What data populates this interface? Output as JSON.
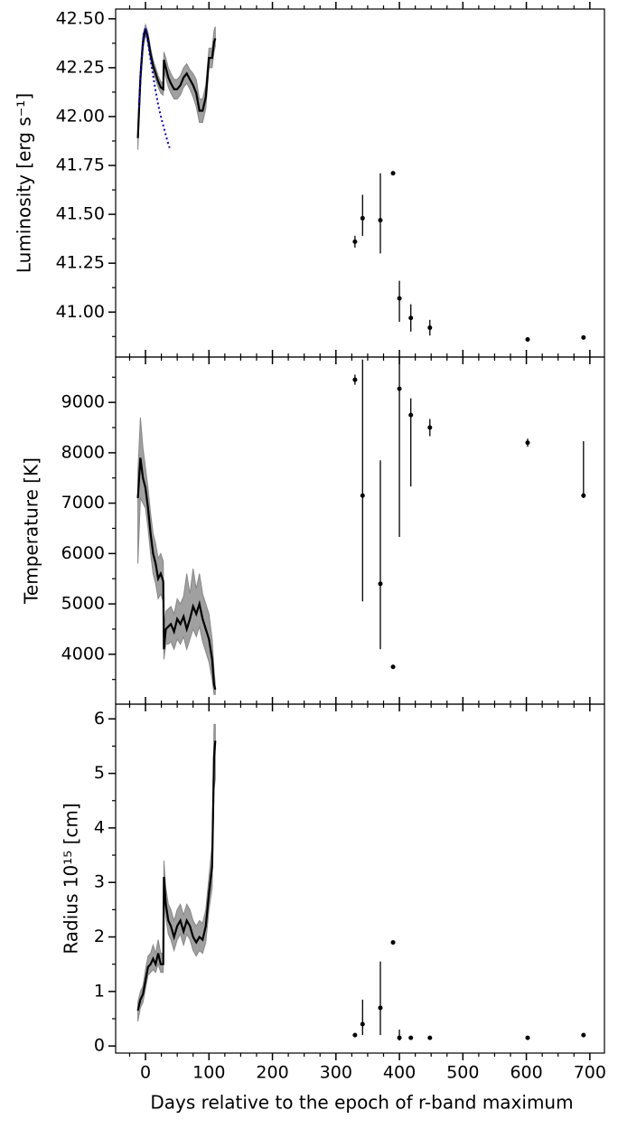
{
  "chart_data": [
    {
      "type": "line",
      "ylabel": "Luminosity [erg s⁻¹]",
      "ylim": [
        40.77,
        42.55
      ],
      "yticks": [
        {
          "value": 41,
          "label": "41.00"
        },
        41.25,
        {
          "value": 41.5,
          "label": "41.50"
        },
        41.75,
        {
          "value": 42,
          "label": "42.00"
        },
        42.25,
        {
          "value": 42.5,
          "label": "42.50"
        }
      ],
      "yminor": [
        40.875,
        41.125,
        41.375,
        41.625,
        41.875,
        42.125,
        42.375
      ],
      "series": [
        {
          "color": "#000000",
          "band_color": "#a0a0a0",
          "x": [
            -12,
            -8,
            -4,
            0,
            4,
            8,
            12,
            16,
            20,
            24,
            28,
            29,
            32,
            36,
            40,
            45,
            50,
            55,
            60,
            65,
            70,
            75,
            80,
            85,
            90,
            95,
            100,
            105,
            108,
            110
          ],
          "values": [
            41.89,
            42.2,
            42.38,
            42.45,
            42.4,
            42.32,
            42.26,
            42.22,
            42.18,
            42.15,
            42.14,
            42.29,
            42.25,
            42.2,
            42.17,
            42.14,
            42.14,
            42.16,
            42.2,
            42.22,
            42.19,
            42.16,
            42.12,
            42.03,
            42.03,
            42.1,
            42.3,
            42.3,
            42.38,
            42.4
          ],
          "band_lower": [
            41.83,
            42.15,
            42.34,
            42.42,
            42.37,
            42.29,
            42.23,
            42.19,
            42.15,
            42.12,
            42.11,
            42.24,
            42.2,
            42.15,
            42.12,
            42.09,
            42.09,
            42.11,
            42.15,
            42.17,
            42.14,
            42.1,
            42.05,
            41.97,
            41.97,
            42.04,
            42.25,
            42.25,
            42.33,
            42.36
          ],
          "band_upper": [
            41.95,
            42.25,
            42.42,
            42.47,
            42.43,
            42.35,
            42.29,
            42.25,
            42.21,
            42.18,
            42.17,
            42.33,
            42.3,
            42.25,
            42.22,
            42.19,
            42.19,
            42.21,
            42.25,
            42.27,
            42.24,
            42.22,
            42.19,
            42.09,
            42.09,
            42.16,
            42.35,
            42.35,
            42.44,
            42.46
          ]
        },
        {
          "color": "#0000cc",
          "linestyle": "dotted",
          "x": [
            -10,
            -6,
            -3,
            0,
            3,
            6,
            10,
            15,
            20,
            25,
            30,
            35,
            38
          ],
          "values": [
            42.05,
            42.3,
            42.42,
            42.45,
            42.4,
            42.33,
            42.25,
            42.15,
            42.06,
            41.99,
            41.93,
            41.87,
            41.84
          ]
        }
      ],
      "points": {
        "color": "#000000",
        "x": [
          330,
          342,
          370,
          390,
          400,
          418,
          448,
          602,
          690
        ],
        "values": [
          41.36,
          41.48,
          41.47,
          41.71,
          41.07,
          40.97,
          40.92,
          40.86,
          40.87
        ],
        "err_minus": [
          0.03,
          0.09,
          0.17,
          0.01,
          0.12,
          0.07,
          0.04,
          0.01,
          0.01
        ],
        "err_plus": [
          0.03,
          0.12,
          0.24,
          0.01,
          0.09,
          0.07,
          0.04,
          0.01,
          0.01
        ]
      }
    },
    {
      "type": "line",
      "ylabel": "Temperature [K]",
      "ylim": [
        3010,
        9900
      ],
      "yticks": [
        4000,
        5000,
        6000,
        7000,
        8000,
        9000
      ],
      "yminor": [
        3500,
        4500,
        5500,
        6500,
        7500,
        8500,
        9500
      ],
      "series": [
        {
          "color": "#000000",
          "band_color": "#a0a0a0",
          "x": [
            -12,
            -8,
            -4,
            0,
            4,
            8,
            12,
            16,
            20,
            24,
            28,
            29,
            32,
            36,
            40,
            45,
            50,
            55,
            60,
            65,
            70,
            75,
            80,
            85,
            90,
            95,
            100,
            105,
            108,
            110
          ],
          "values": [
            7100,
            7900,
            7500,
            7300,
            6900,
            6400,
            6000,
            5800,
            5500,
            5600,
            5450,
            4100,
            4500,
            4550,
            4600,
            4450,
            4700,
            4600,
            4750,
            4500,
            4700,
            4950,
            4800,
            5000,
            4700,
            4500,
            4300,
            3900,
            3400,
            3300
          ],
          "band_lower": [
            5800,
            7100,
            7000,
            6900,
            6500,
            6000,
            5600,
            5400,
            5100,
            5200,
            5050,
            3900,
            4200,
            4200,
            4250,
            4100,
            4300,
            4200,
            4350,
            4100,
            4300,
            4500,
            4350,
            4550,
            4250,
            4050,
            3850,
            3500,
            3200,
            3200
          ],
          "band_upper": [
            7600,
            8700,
            8100,
            7700,
            7300,
            6800,
            6400,
            6200,
            5900,
            6000,
            5850,
            4500,
            4850,
            4900,
            4950,
            4800,
            5100,
            5000,
            5150,
            5600,
            5200,
            5700,
            5300,
            5600,
            5200,
            5000,
            4800,
            4300,
            3700,
            3400
          ]
        }
      ],
      "points": {
        "color": "#000000",
        "x": [
          330,
          342,
          370,
          390,
          400,
          418,
          448,
          602,
          690
        ],
        "values": [
          9450,
          7150,
          5400,
          3750,
          9270,
          8750,
          8500,
          8200,
          7150
        ],
        "err_minus": [
          100,
          2100,
          1300,
          20,
          2940,
          1420,
          170,
          80,
          50
        ],
        "err_plus": [
          100,
          2700,
          2450,
          20,
          700,
          330,
          170,
          80,
          1080
        ]
      }
    },
    {
      "type": "line",
      "ylabel": "Radius 10¹⁵ [cm]",
      "xlabel": "Days relative to the epoch of r-band maximum",
      "xlim": [
        -47,
        723
      ],
      "xticks": [
        0,
        100,
        200,
        300,
        400,
        500,
        600,
        700
      ],
      "xminor": [
        -25,
        25,
        50,
        75,
        125,
        150,
        175,
        225,
        250,
        275,
        325,
        350,
        375,
        425,
        450,
        475,
        525,
        550,
        575,
        625,
        650,
        675
      ],
      "ylim": [
        -0.13,
        6.27
      ],
      "yticks": [
        0,
        1,
        2,
        3,
        4,
        5,
        6
      ],
      "yminor": [
        0.5,
        1.5,
        2.5,
        3.5,
        4.5,
        5.5
      ],
      "series": [
        {
          "color": "#000000",
          "band_color": "#a0a0a0",
          "x": [
            -12,
            -8,
            -4,
            0,
            4,
            8,
            12,
            16,
            20,
            24,
            28,
            29,
            32,
            36,
            40,
            45,
            50,
            55,
            60,
            65,
            70,
            75,
            80,
            85,
            90,
            95,
            100,
            105,
            108,
            110
          ],
          "values": [
            0.65,
            0.85,
            0.95,
            1.2,
            1.45,
            1.5,
            1.6,
            1.5,
            1.7,
            1.5,
            1.5,
            3.1,
            2.6,
            2.3,
            2.2,
            2.0,
            2.2,
            2.3,
            2.1,
            2.3,
            2.2,
            2.0,
            1.9,
            2.0,
            1.95,
            2.2,
            2.8,
            3.3,
            5.3,
            5.6
          ],
          "band_lower": [
            0.45,
            0.7,
            0.8,
            1.05,
            1.3,
            1.35,
            1.4,
            1.35,
            1.5,
            1.35,
            1.35,
            2.8,
            2.35,
            2.05,
            1.95,
            1.75,
            1.95,
            2.05,
            1.85,
            2.05,
            1.95,
            1.75,
            1.65,
            1.75,
            1.7,
            1.9,
            2.5,
            2.9,
            4.7,
            4.9
          ],
          "band_upper": [
            0.8,
            1.0,
            1.1,
            1.4,
            1.65,
            1.7,
            1.85,
            1.7,
            1.95,
            1.7,
            1.7,
            3.4,
            2.9,
            2.6,
            2.5,
            2.3,
            2.5,
            2.6,
            2.4,
            2.6,
            2.5,
            2.3,
            2.2,
            2.3,
            2.25,
            2.5,
            3.1,
            3.7,
            5.9,
            5.9
          ]
        }
      ],
      "points": {
        "color": "#000000",
        "x": [
          330,
          342,
          370,
          390,
          400,
          418,
          448,
          602,
          690
        ],
        "values": [
          0.2,
          0.4,
          0.7,
          1.9,
          0.15,
          0.15,
          0.15,
          0.15,
          0.2
        ],
        "err_minus": [
          0.02,
          0.2,
          0.5,
          0.02,
          0.05,
          0.03,
          0.02,
          0.02,
          0.02
        ],
        "err_plus": [
          0.02,
          0.45,
          0.85,
          0.02,
          0.15,
          0.03,
          0.02,
          0.02,
          0.02
        ]
      }
    }
  ]
}
